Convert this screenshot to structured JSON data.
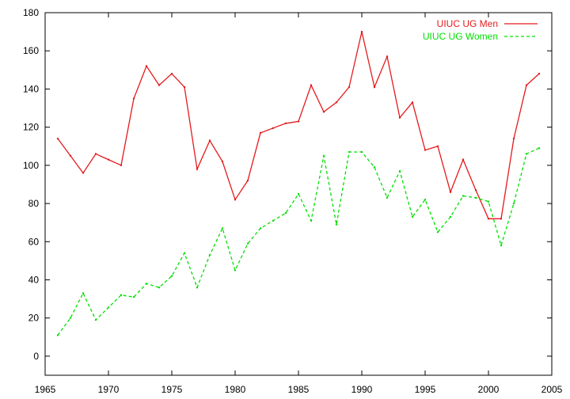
{
  "chart_data": {
    "type": "line",
    "title": "",
    "xlabel": "",
    "ylabel": "",
    "xlim": [
      1965,
      2005
    ],
    "ylim": [
      -10,
      180
    ],
    "x_ticks": [
      1965,
      1970,
      1975,
      1980,
      1985,
      1990,
      1995,
      2000,
      2005
    ],
    "y_ticks": [
      0,
      20,
      40,
      60,
      80,
      100,
      120,
      140,
      160,
      180
    ],
    "grid": false,
    "legend_position": "top-right",
    "x": [
      1966,
      1967,
      1968,
      1969,
      1970,
      1971,
      1972,
      1973,
      1974,
      1975,
      1976,
      1977,
      1978,
      1979,
      1980,
      1981,
      1982,
      1983,
      1984,
      1985,
      1986,
      1987,
      1988,
      1989,
      1990,
      1991,
      1992,
      1993,
      1994,
      1995,
      1996,
      1997,
      1998,
      1999,
      2000,
      2001,
      2002,
      2003,
      2004
    ],
    "series": [
      {
        "name": "UIUC UG Men",
        "color": "#e41a1c",
        "dash": "solid",
        "values": [
          114,
          105,
          96,
          106,
          103,
          100,
          135,
          152,
          142,
          148,
          141,
          98,
          113,
          102,
          82,
          92,
          117,
          119.5,
          122,
          123,
          142,
          128,
          133,
          141,
          170,
          141,
          157,
          125,
          133,
          108,
          110,
          86,
          103,
          87,
          72,
          72,
          114,
          142,
          148
        ]
      },
      {
        "name": "UIUC UG Women",
        "color": "#00e000",
        "dash": "dashed",
        "values": [
          11,
          20,
          33,
          19,
          25.5,
          32,
          31,
          38,
          36,
          42,
          54,
          36,
          53,
          67,
          45,
          59,
          67,
          71,
          75,
          85,
          71,
          105,
          69,
          107,
          107,
          99,
          83,
          97,
          73,
          82,
          65,
          73,
          84,
          83,
          81,
          58,
          80,
          106,
          109
        ]
      }
    ]
  }
}
